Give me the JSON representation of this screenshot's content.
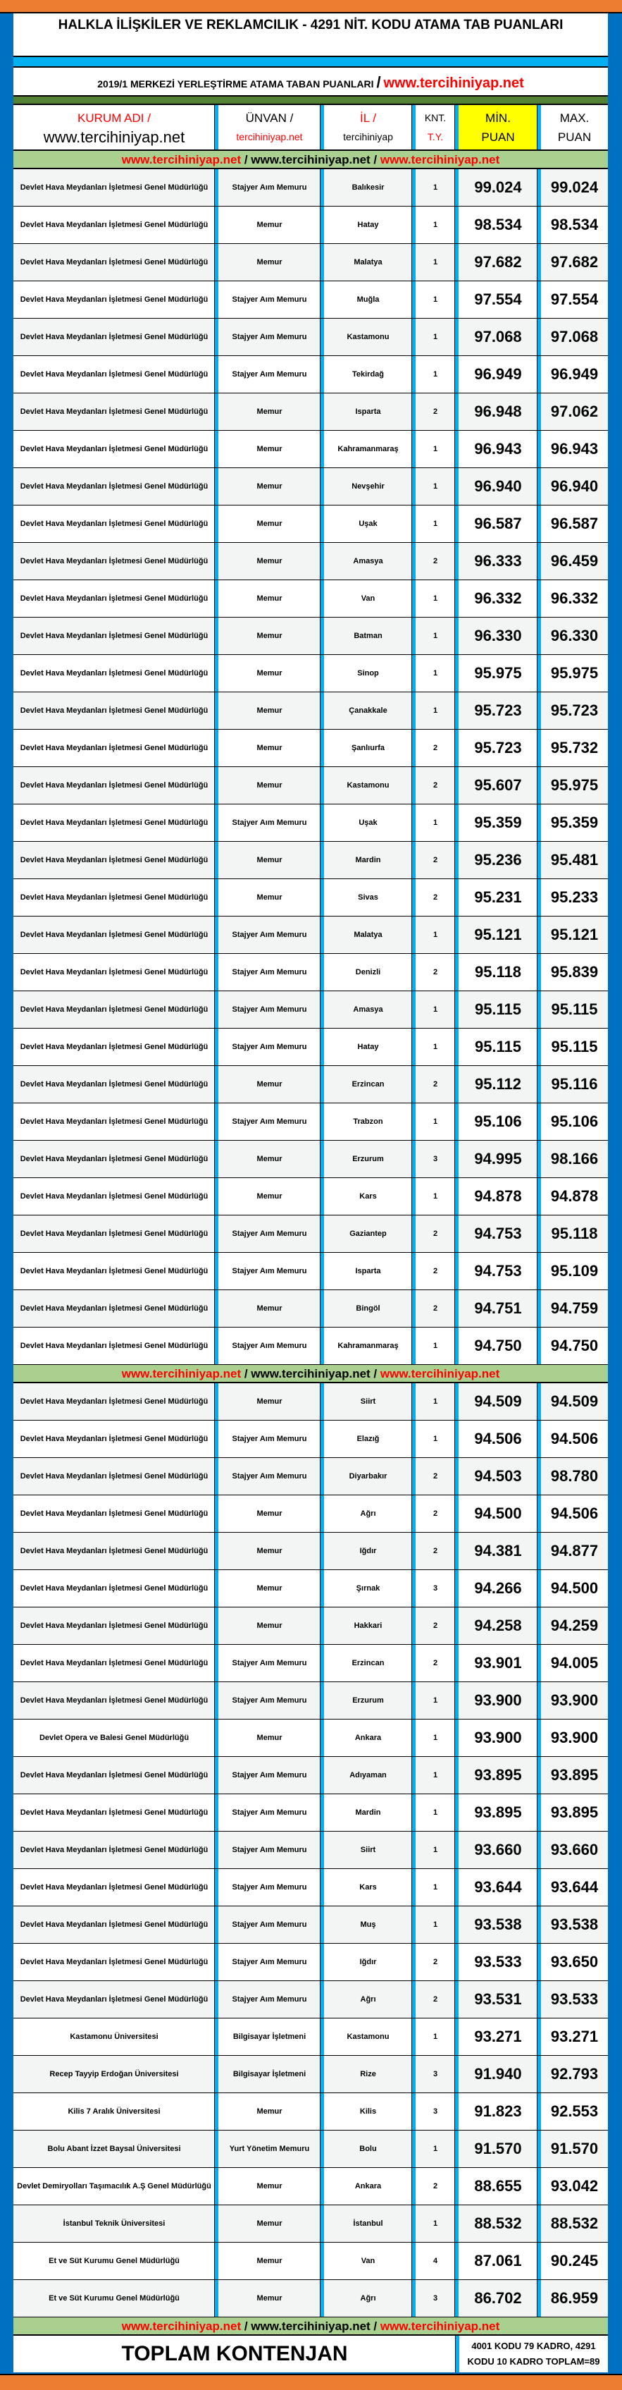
{
  "title": "HALKLA İLİŞKİLER VE REKLAMCILIK - 4291 NİT. KODU ATAMA TAB PUANLARI",
  "subtitle": {
    "text": "2019/1 MERKEZİ YERLEŞTİRME ATAMA TABAN PUANLARI",
    "slash": "/",
    "site": "www.tercihiniyap.net"
  },
  "headers": {
    "kurum_1": "KURUM ADI /",
    "kurum_2": "www.tercihiniyap.net",
    "unvan_1": "ÜNVAN /",
    "unvan_2": "tercihiniyap.net",
    "il_1": "İL /",
    "il_2": "tercihiniyap",
    "kt_1": "KNT.",
    "kt_2": "T.Y.",
    "min_1": "MİN.",
    "min_2": "PUAN",
    "max_1": "MAX.",
    "max_2": "PUAN"
  },
  "watermark": {
    "a": "www.tercihiniyap.net",
    "sep1": " / ",
    "b": "www.tercihiniyap.net",
    "sep2": " / ",
    "c": "www.tercihiniyap.net"
  },
  "colors": {
    "orange": "#ed7d31",
    "frame_blue": "#0070c0",
    "separator_blue": "#00b0f0",
    "green_band": "#548235",
    "watermark_green": "#a9d08e",
    "min_header_yellow": "#ffff00",
    "red": "#ff0000"
  },
  "section1": [
    [
      "Devlet Hava Meydanları İşletmesi Genel Müdürlüğü",
      "Stajyer Aım Memuru",
      "Balıkesir",
      "1",
      "99.024",
      "99.024"
    ],
    [
      "Devlet Hava Meydanları İşletmesi Genel Müdürlüğü",
      "Memur",
      "Hatay",
      "1",
      "98.534",
      "98.534"
    ],
    [
      "Devlet Hava Meydanları İşletmesi Genel Müdürlüğü",
      "Memur",
      "Malatya",
      "1",
      "97.682",
      "97.682"
    ],
    [
      "Devlet Hava Meydanları İşletmesi Genel Müdürlüğü",
      "Stajyer Aım Memuru",
      "Muğla",
      "1",
      "97.554",
      "97.554"
    ],
    [
      "Devlet Hava Meydanları İşletmesi Genel Müdürlüğü",
      "Stajyer Aım Memuru",
      "Kastamonu",
      "1",
      "97.068",
      "97.068"
    ],
    [
      "Devlet Hava Meydanları İşletmesi Genel Müdürlüğü",
      "Stajyer Aım Memuru",
      "Tekirdağ",
      "1",
      "96.949",
      "96.949"
    ],
    [
      "Devlet Hava Meydanları İşletmesi Genel Müdürlüğü",
      "Memur",
      "Isparta",
      "2",
      "96.948",
      "97.062"
    ],
    [
      "Devlet Hava Meydanları İşletmesi Genel Müdürlüğü",
      "Memur",
      "Kahramanmaraş",
      "1",
      "96.943",
      "96.943"
    ],
    [
      "Devlet Hava Meydanları İşletmesi Genel Müdürlüğü",
      "Memur",
      "Nevşehir",
      "1",
      "96.940",
      "96.940"
    ],
    [
      "Devlet Hava Meydanları İşletmesi Genel Müdürlüğü",
      "Memur",
      "Uşak",
      "1",
      "96.587",
      "96.587"
    ],
    [
      "Devlet Hava Meydanları İşletmesi Genel Müdürlüğü",
      "Memur",
      "Amasya",
      "2",
      "96.333",
      "96.459"
    ],
    [
      "Devlet Hava Meydanları İşletmesi Genel Müdürlüğü",
      "Memur",
      "Van",
      "1",
      "96.332",
      "96.332"
    ],
    [
      "Devlet Hava Meydanları İşletmesi Genel Müdürlüğü",
      "Memur",
      "Batman",
      "1",
      "96.330",
      "96.330"
    ],
    [
      "Devlet Hava Meydanları İşletmesi Genel Müdürlüğü",
      "Memur",
      "Sinop",
      "1",
      "95.975",
      "95.975"
    ],
    [
      "Devlet Hava Meydanları İşletmesi Genel Müdürlüğü",
      "Memur",
      "Çanakkale",
      "1",
      "95.723",
      "95.723"
    ],
    [
      "Devlet Hava Meydanları İşletmesi Genel Müdürlüğü",
      "Memur",
      "Şanlıurfa",
      "2",
      "95.723",
      "95.732"
    ],
    [
      "Devlet Hava Meydanları İşletmesi Genel Müdürlüğü",
      "Memur",
      "Kastamonu",
      "2",
      "95.607",
      "95.975"
    ],
    [
      "Devlet Hava Meydanları İşletmesi Genel Müdürlüğü",
      "Stajyer Aım Memuru",
      "Uşak",
      "1",
      "95.359",
      "95.359"
    ],
    [
      "Devlet Hava Meydanları İşletmesi Genel Müdürlüğü",
      "Memur",
      "Mardin",
      "2",
      "95.236",
      "95.481"
    ],
    [
      "Devlet Hava Meydanları İşletmesi Genel Müdürlüğü",
      "Memur",
      "Sivas",
      "2",
      "95.231",
      "95.233"
    ],
    [
      "Devlet Hava Meydanları İşletmesi Genel Müdürlüğü",
      "Stajyer Aım Memuru",
      "Malatya",
      "1",
      "95.121",
      "95.121"
    ],
    [
      "Devlet Hava Meydanları İşletmesi Genel Müdürlüğü",
      "Stajyer Aım Memuru",
      "Denizli",
      "2",
      "95.118",
      "95.839"
    ],
    [
      "Devlet Hava Meydanları İşletmesi Genel Müdürlüğü",
      "Stajyer Aım Memuru",
      "Amasya",
      "1",
      "95.115",
      "95.115"
    ],
    [
      "Devlet Hava Meydanları İşletmesi Genel Müdürlüğü",
      "Stajyer Aım Memuru",
      "Hatay",
      "1",
      "95.115",
      "95.115"
    ],
    [
      "Devlet Hava Meydanları İşletmesi Genel Müdürlüğü",
      "Memur",
      "Erzincan",
      "2",
      "95.112",
      "95.116"
    ],
    [
      "Devlet Hava Meydanları İşletmesi Genel Müdürlüğü",
      "Stajyer Aım Memuru",
      "Trabzon",
      "1",
      "95.106",
      "95.106"
    ],
    [
      "Devlet Hava Meydanları İşletmesi Genel Müdürlüğü",
      "Memur",
      "Erzurum",
      "3",
      "94.995",
      "98.166"
    ],
    [
      "Devlet Hava Meydanları İşletmesi Genel Müdürlüğü",
      "Memur",
      "Kars",
      "1",
      "94.878",
      "94.878"
    ],
    [
      "Devlet Hava Meydanları İşletmesi Genel Müdürlüğü",
      "Stajyer Aım Memuru",
      "Gaziantep",
      "2",
      "94.753",
      "95.118"
    ],
    [
      "Devlet Hava Meydanları İşletmesi Genel Müdürlüğü",
      "Stajyer Aım Memuru",
      "Isparta",
      "2",
      "94.753",
      "95.109"
    ],
    [
      "Devlet Hava Meydanları İşletmesi Genel Müdürlüğü",
      "Memur",
      "Bingöl",
      "2",
      "94.751",
      "94.759"
    ],
    [
      "Devlet Hava Meydanları İşletmesi Genel Müdürlüğü",
      "Stajyer Aım Memuru",
      "Kahramanmaraş",
      "1",
      "94.750",
      "94.750"
    ]
  ],
  "section2": [
    [
      "Devlet Hava Meydanları İşletmesi Genel Müdürlüğü",
      "Memur",
      "Siirt",
      "1",
      "94.509",
      "94.509"
    ],
    [
      "Devlet Hava Meydanları İşletmesi Genel Müdürlüğü",
      "Stajyer Aım Memuru",
      "Elazığ",
      "1",
      "94.506",
      "94.506"
    ],
    [
      "Devlet Hava Meydanları İşletmesi Genel Müdürlüğü",
      "Stajyer Aım Memuru",
      "Diyarbakır",
      "2",
      "94.503",
      "98.780"
    ],
    [
      "Devlet Hava Meydanları İşletmesi Genel Müdürlüğü",
      "Memur",
      "Ağrı",
      "2",
      "94.500",
      "94.506"
    ],
    [
      "Devlet Hava Meydanları İşletmesi Genel Müdürlüğü",
      "Memur",
      "Iğdır",
      "2",
      "94.381",
      "94.877"
    ],
    [
      "Devlet Hava Meydanları İşletmesi Genel Müdürlüğü",
      "Memur",
      "Şırnak",
      "3",
      "94.266",
      "94.500"
    ],
    [
      "Devlet Hava Meydanları İşletmesi Genel Müdürlüğü",
      "Memur",
      "Hakkari",
      "2",
      "94.258",
      "94.259"
    ],
    [
      "Devlet Hava Meydanları İşletmesi Genel Müdürlüğü",
      "Stajyer Aım Memuru",
      "Erzincan",
      "2",
      "93.901",
      "94.005"
    ],
    [
      "Devlet Hava Meydanları İşletmesi Genel Müdürlüğü",
      "Stajyer Aım Memuru",
      "Erzurum",
      "1",
      "93.900",
      "93.900"
    ],
    [
      "Devlet Opera ve Balesi Genel Müdürlüğü",
      "Memur",
      "Ankara",
      "1",
      "93.900",
      "93.900"
    ],
    [
      "Devlet Hava Meydanları İşletmesi Genel Müdürlüğü",
      "Stajyer Aım Memuru",
      "Adıyaman",
      "1",
      "93.895",
      "93.895"
    ],
    [
      "Devlet Hava Meydanları İşletmesi Genel Müdürlüğü",
      "Stajyer Aım Memuru",
      "Mardin",
      "1",
      "93.895",
      "93.895"
    ],
    [
      "Devlet Hava Meydanları İşletmesi Genel Müdürlüğü",
      "Stajyer Aım Memuru",
      "Siirt",
      "1",
      "93.660",
      "93.660"
    ],
    [
      "Devlet Hava Meydanları İşletmesi Genel Müdürlüğü",
      "Stajyer Aım Memuru",
      "Kars",
      "1",
      "93.644",
      "93.644"
    ],
    [
      "Devlet Hava Meydanları İşletmesi Genel Müdürlüğü",
      "Stajyer Aım Memuru",
      "Muş",
      "1",
      "93.538",
      "93.538"
    ],
    [
      "Devlet Hava Meydanları İşletmesi Genel Müdürlüğü",
      "Stajyer Aım Memuru",
      "Iğdır",
      "2",
      "93.533",
      "93.650"
    ],
    [
      "Devlet Hava Meydanları İşletmesi Genel Müdürlüğü",
      "Stajyer Aım Memuru",
      "Ağrı",
      "2",
      "93.531",
      "93.533"
    ],
    [
      "Kastamonu Üniversitesi",
      "Bilgisayar İşletmeni",
      "Kastamonu",
      "1",
      "93.271",
      "93.271"
    ],
    [
      "Recep Tayyip Erdoğan Üniversitesi",
      "Bilgisayar İşletmeni",
      "Rize",
      "3",
      "91.940",
      "92.793"
    ],
    [
      "Kilis 7 Aralık Üniversitesi",
      "Memur",
      "Kilis",
      "3",
      "91.823",
      "92.553"
    ],
    [
      "Bolu Abant İzzet Baysal Üniversitesi",
      "Yurt Yönetim Memuru",
      "Bolu",
      "1",
      "91.570",
      "91.570"
    ],
    [
      "Devlet Demiryolları Taşımacılık A.Ş Genel Müdürlüğü",
      "Memur",
      "Ankara",
      "2",
      "88.655",
      "93.042"
    ],
    [
      "İstanbul Teknik Üniversitesi",
      "Memur",
      "İstanbul",
      "1",
      "88.532",
      "88.532"
    ],
    [
      "Et ve Süt Kurumu Genel Müdürlüğü",
      "Memur",
      "Van",
      "4",
      "87.061",
      "90.245"
    ],
    [
      "Et ve Süt Kurumu Genel Müdürlüğü",
      "Memur",
      "Ağrı",
      "3",
      "86.702",
      "86.959"
    ]
  ],
  "total": {
    "label": "TOPLAM KONTENJAN",
    "value": "4001 KODU 79 KADRO, 4291 KODU 10 KADRO TOPLAM=89"
  }
}
